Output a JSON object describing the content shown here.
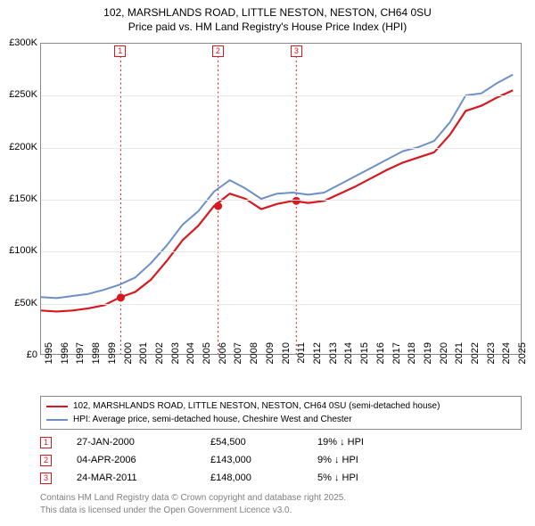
{
  "title_line1": "102, MARSHLANDS ROAD, LITTLE NESTON, NESTON, CH64 0SU",
  "title_line2": "Price paid vs. HM Land Registry's House Price Index (HPI)",
  "chart": {
    "type": "line",
    "background_color": "#ffffff",
    "grid_color": "#e8e8e8",
    "border_color": "#888888",
    "x_min": 1995,
    "x_max": 2025.5,
    "x_ticks": [
      1995,
      1996,
      1997,
      1998,
      1999,
      2000,
      2001,
      2002,
      2003,
      2004,
      2005,
      2006,
      2007,
      2008,
      2009,
      2010,
      2011,
      2012,
      2013,
      2014,
      2015,
      2016,
      2017,
      2018,
      2019,
      2020,
      2021,
      2022,
      2023,
      2024,
      2025
    ],
    "y_min": 0,
    "y_max": 300000,
    "y_ticks": [
      0,
      50000,
      100000,
      150000,
      200000,
      250000,
      300000
    ],
    "y_tick_labels": [
      "£0",
      "£50K",
      "£100K",
      "£150K",
      "£200K",
      "£250K",
      "£300K"
    ],
    "series": [
      {
        "name": "price_paid",
        "label": "102, MARSHLANDS ROAD, LITTLE NESTON, NESTON, CH64 0SU (semi-detached house)",
        "color": "#d8171e",
        "line_width": 2.2,
        "data": [
          [
            1995,
            42000
          ],
          [
            1996,
            41000
          ],
          [
            1997,
            42000
          ],
          [
            1998,
            44000
          ],
          [
            1999,
            47000
          ],
          [
            2000,
            54500
          ],
          [
            2001,
            60000
          ],
          [
            2002,
            72000
          ],
          [
            2003,
            90000
          ],
          [
            2004,
            110000
          ],
          [
            2005,
            124000
          ],
          [
            2006,
            143000
          ],
          [
            2007,
            155000
          ],
          [
            2008,
            150000
          ],
          [
            2009,
            140000
          ],
          [
            2010,
            145000
          ],
          [
            2011,
            148000
          ],
          [
            2012,
            146000
          ],
          [
            2013,
            148000
          ],
          [
            2014,
            155000
          ],
          [
            2015,
            162000
          ],
          [
            2016,
            170000
          ],
          [
            2017,
            178000
          ],
          [
            2018,
            185000
          ],
          [
            2019,
            190000
          ],
          [
            2020,
            195000
          ],
          [
            2021,
            212000
          ],
          [
            2022,
            235000
          ],
          [
            2023,
            240000
          ],
          [
            2024,
            248000
          ],
          [
            2025,
            255000
          ]
        ]
      },
      {
        "name": "hpi",
        "label": "HPI: Average price, semi-detached house, Cheshire West and Chester",
        "color": "#6b8fc9",
        "line_width": 2.0,
        "data": [
          [
            1995,
            55000
          ],
          [
            1996,
            54000
          ],
          [
            1997,
            56000
          ],
          [
            1998,
            58000
          ],
          [
            1999,
            62000
          ],
          [
            2000,
            67000
          ],
          [
            2001,
            74000
          ],
          [
            2002,
            88000
          ],
          [
            2003,
            105000
          ],
          [
            2004,
            125000
          ],
          [
            2005,
            138000
          ],
          [
            2006,
            157000
          ],
          [
            2007,
            168000
          ],
          [
            2008,
            160000
          ],
          [
            2009,
            150000
          ],
          [
            2010,
            155000
          ],
          [
            2011,
            156000
          ],
          [
            2012,
            154000
          ],
          [
            2013,
            156000
          ],
          [
            2014,
            164000
          ],
          [
            2015,
            172000
          ],
          [
            2016,
            180000
          ],
          [
            2017,
            188000
          ],
          [
            2018,
            196000
          ],
          [
            2019,
            200000
          ],
          [
            2020,
            206000
          ],
          [
            2021,
            224000
          ],
          [
            2022,
            250000
          ],
          [
            2023,
            252000
          ],
          [
            2024,
            262000
          ],
          [
            2025,
            270000
          ]
        ]
      }
    ],
    "sale_markers": [
      {
        "n": "1",
        "year": 2000.07,
        "price": 54500
      },
      {
        "n": "2",
        "year": 2006.26,
        "price": 143000
      },
      {
        "n": "3",
        "year": 2011.23,
        "price": 148000
      }
    ],
    "marker_dot_color": "#d8171e",
    "vline_color": "#d8171e"
  },
  "legend": {
    "items": [
      {
        "color": "#d8171e",
        "thick": 2.5,
        "label": "102, MARSHLANDS ROAD, LITTLE NESTON, NESTON, CH64 0SU (semi-detached house)"
      },
      {
        "color": "#6b8fc9",
        "thick": 2.0,
        "label": "HPI: Average price, semi-detached house, Cheshire West and Chester"
      }
    ]
  },
  "sales": [
    {
      "n": "1",
      "date": "27-JAN-2000",
      "price": "£54,500",
      "diff": "19% ↓ HPI",
      "color": "#d8171e"
    },
    {
      "n": "2",
      "date": "04-APR-2006",
      "price": "£143,000",
      "diff": "9% ↓ HPI",
      "color": "#d8171e"
    },
    {
      "n": "3",
      "date": "24-MAR-2011",
      "price": "£148,000",
      "diff": "5% ↓ HPI",
      "color": "#d8171e"
    }
  ],
  "footer_line1": "Contains HM Land Registry data © Crown copyright and database right 2025.",
  "footer_line2": "This data is licensed under the Open Government Licence v3.0."
}
